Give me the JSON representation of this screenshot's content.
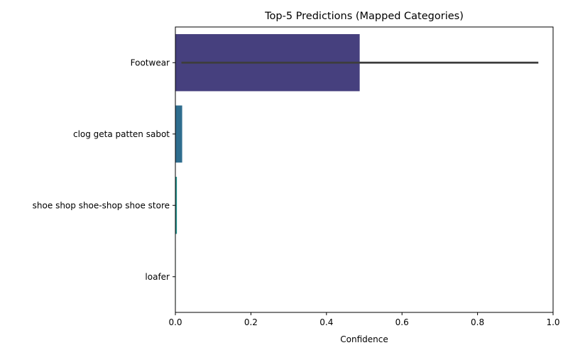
{
  "chart_data": {
    "type": "bar",
    "orientation": "horizontal",
    "title": "Top-5 Predictions (Mapped Categories)",
    "xlabel": "Confidence",
    "ylabel": "",
    "xlim": [
      0,
      1.0
    ],
    "x_ticks": [
      0.0,
      0.2,
      0.4,
      0.6,
      0.8,
      1.0
    ],
    "x_tick_labels": [
      "0.0",
      "0.2",
      "0.4",
      "0.6",
      "0.8",
      "1.0"
    ],
    "categories": [
      "Footwear",
      "clog geta patten sabot",
      "shoe shop shoe-shop shoe store",
      "loafer"
    ],
    "values": [
      0.488,
      0.018,
      0.004,
      0.001
    ],
    "error_bars": [
      {
        "category": "Footwear",
        "low": 0.016,
        "high": 0.961
      }
    ],
    "colors": [
      "#46407e",
      "#2f6d8e",
      "#21918c",
      "#3bb77a"
    ],
    "error_bar_color": "#3d3d3d",
    "grid": false,
    "legend": "none"
  }
}
